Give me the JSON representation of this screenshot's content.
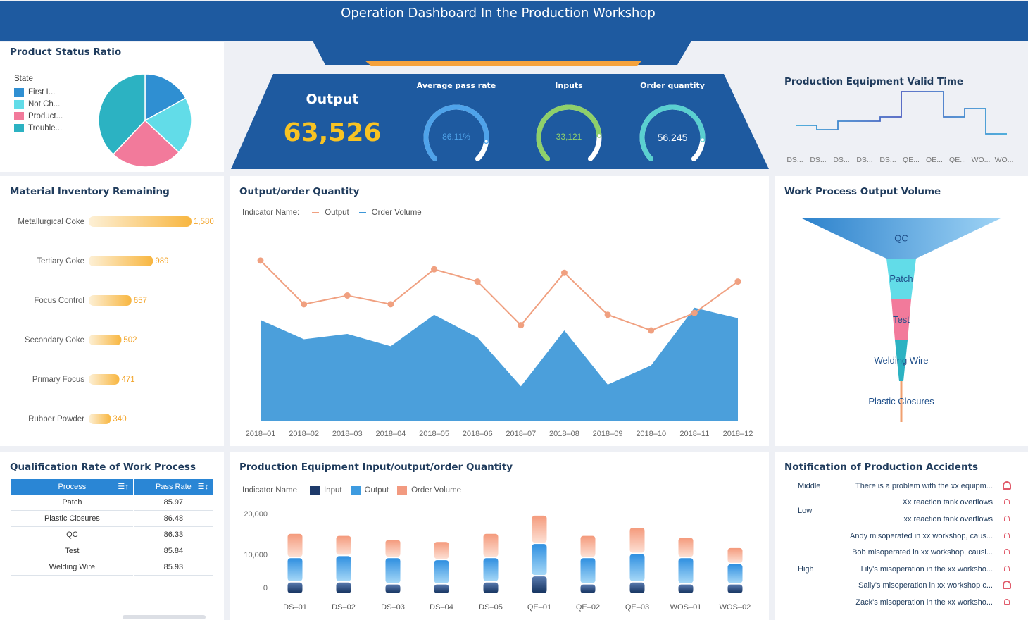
{
  "header": {
    "title": "Operation Dashboard In the Production Workshop"
  },
  "status_ratio": {
    "title": "Product Status Ratio",
    "legend_title": "State",
    "legend": [
      {
        "label": "First I...",
        "color": "#2f8fd2"
      },
      {
        "label": "Not Ch...",
        "color": "#62dce8"
      },
      {
        "label": "Product...",
        "color": "#f27a9b"
      },
      {
        "label": "Trouble...",
        "color": "#2cb2c2"
      }
    ],
    "chart_data": {
      "type": "pie",
      "categories": [
        "First I...",
        "Not Ch...",
        "Product...",
        "Trouble..."
      ],
      "values": [
        17,
        20,
        25,
        38
      ]
    }
  },
  "kpi": {
    "output_label": "Output",
    "output_value": "63,526",
    "gauges": [
      {
        "label": "Average pass rate",
        "value_text": "86.11%",
        "fraction": 0.8611,
        "color": "#4fa3ea",
        "text_color": "#4fa3ea"
      },
      {
        "label": "Inputs",
        "value_text": "33,121",
        "fraction": 0.82,
        "color": "#8fd06a",
        "text_color": "#8fd06a"
      },
      {
        "label": "Order quantity",
        "value_text": "56,245",
        "fraction": 0.85,
        "color": "#5ad0d0",
        "text_color": "#ffffff"
      }
    ]
  },
  "equipment_valid": {
    "title": "Production Equipment Valid Time",
    "chart_data": {
      "type": "line",
      "categories": [
        "DS...",
        "DS...",
        "DS...",
        "DS...",
        "DS...",
        "QE...",
        "QE...",
        "QE...",
        "WO...",
        "WO..."
      ],
      "series": [
        {
          "values": [
            4,
            3,
            5,
            5,
            6,
            12,
            12,
            6,
            8,
            2
          ]
        }
      ]
    }
  },
  "material": {
    "title": "Material Inventory Remaining",
    "chart_data": {
      "type": "bar",
      "categories": [
        "Metallurgical Coke",
        "Tertiary Coke",
        "Focus Control",
        "Secondary Coke",
        "Primary Focus",
        "Rubber Powder"
      ],
      "values": [
        1580,
        989,
        657,
        502,
        471,
        340
      ],
      "value_labels": [
        "1,580",
        "989",
        "657",
        "502",
        "471",
        "340"
      ]
    }
  },
  "output_order": {
    "title": "Output/order Quantity",
    "indicator_label": "Indicator Name:",
    "legend": [
      {
        "name": "Output",
        "color": "#f0a080"
      },
      {
        "name": "Order Volume",
        "color": "#3d97d8"
      }
    ],
    "chart_data": {
      "type": "line",
      "categories": [
        "2018–01",
        "2018–02",
        "2018–03",
        "2018–04",
        "2018–05",
        "2018–06",
        "2018–07",
        "2018–08",
        "2018–09",
        "2018–10",
        "2018–11",
        "2018–12"
      ],
      "series": [
        {
          "name": "Output",
          "values": [
            92,
            67,
            72,
            67,
            87,
            80,
            55,
            85,
            61,
            52,
            62,
            80
          ]
        },
        {
          "name": "Order Volume",
          "values": [
            58,
            47,
            50,
            43,
            61,
            48,
            20,
            52,
            21,
            32,
            65,
            59
          ]
        }
      ],
      "ylim": [
        0,
        100
      ]
    }
  },
  "work_process": {
    "title": "Work Process Output Volume",
    "chart_data": {
      "type": "funnel",
      "categories": [
        "QC",
        "Patch",
        "Test",
        "Welding Wire",
        "Plastic Closures"
      ],
      "values": [
        100,
        15,
        9,
        6,
        1
      ],
      "colors": [
        "#3d97d8",
        "#62dce8",
        "#f27a9b",
        "#2cb2c2",
        "#f0a070"
      ]
    }
  },
  "qualification": {
    "title": "Qualification Rate of Work Process",
    "columns": [
      "Process",
      "Pass Rate"
    ],
    "sort_icon": "sort-icon",
    "rows": [
      [
        "Patch",
        "85.97"
      ],
      [
        "Plastic Closures",
        "86.48"
      ],
      [
        "QC",
        "86.33"
      ],
      [
        "Test",
        "85.84"
      ],
      [
        "Welding Wire",
        "85.93"
      ]
    ]
  },
  "equipment_io": {
    "title": "Production Equipment Input/output/order Quantity",
    "indicator_label": "Indicator Name",
    "legend": [
      {
        "name": "Input",
        "color": "#1e3a6a"
      },
      {
        "name": "Output",
        "color": "#3d9be0"
      },
      {
        "name": "Order Volume",
        "color": "#f29a80"
      }
    ],
    "chart_data": {
      "type": "bar",
      "categories": [
        "DS–01",
        "DS–02",
        "DS–03",
        "DS–04",
        "DS–05",
        "QE–01",
        "QE–02",
        "QE–03",
        "WOS–01",
        "WOS–02"
      ],
      "yticks": [
        "20,000",
        "10,000",
        "0"
      ],
      "ylim": [
        0,
        20000
      ],
      "series": [
        {
          "name": "Input",
          "values": [
            3000,
            3000,
            2500,
            2500,
            3000,
            4500,
            2500,
            3000,
            2500,
            2500
          ]
        },
        {
          "name": "Output",
          "values": [
            6000,
            6500,
            6500,
            6000,
            6000,
            8000,
            6500,
            7000,
            6500,
            5000
          ]
        },
        {
          "name": "Order Volume",
          "values": [
            6000,
            5000,
            4500,
            4500,
            6000,
            7000,
            5500,
            6500,
            5000,
            4000
          ]
        }
      ]
    }
  },
  "accidents": {
    "title": "Notification of Production Accidents",
    "groups": [
      {
        "level": "Middle",
        "items": [
          {
            "text": "There is a problem with the xx equipm...",
            "icon": "bell-icon"
          }
        ]
      },
      {
        "level": "Low",
        "items": [
          {
            "text": "Xx reaction tank overflows",
            "icon": "bell-icon"
          },
          {
            "text": "xx reaction tank overflows",
            "icon": "bell-icon"
          }
        ]
      },
      {
        "level": "High",
        "items": [
          {
            "text": "Andy misoperated in xx workshop, caus...",
            "icon": "bell-icon"
          },
          {
            "text": "Bob misoperated in xx workshop, causi...",
            "icon": "bell-icon"
          },
          {
            "text": "Lily's misoperation in the xx worksho...",
            "icon": "bell-icon"
          },
          {
            "text": "Sally's misoperation in xx workshop c...",
            "icon": "bell-icon"
          },
          {
            "text": "Zack's misoperation in the xx worksho...",
            "icon": "bell-icon"
          }
        ]
      }
    ]
  }
}
